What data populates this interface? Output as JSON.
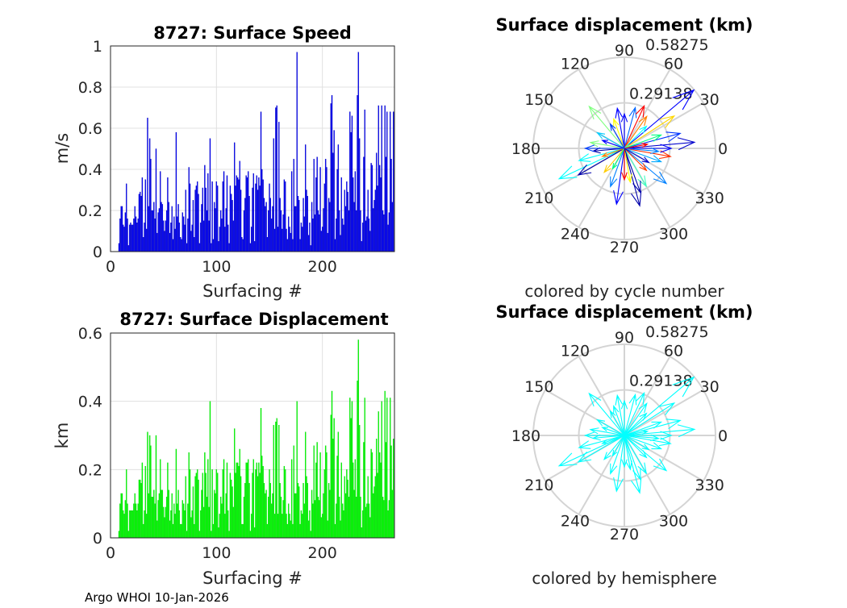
{
  "footer": "Argo WHOI 10-Jan-2026",
  "chart_data": [
    {
      "type": "bar",
      "title": "8727: Surface Speed",
      "xlabel": "Surfacing #",
      "ylabel": "m/s",
      "xlim": [
        0,
        268
      ],
      "ylim": [
        0,
        1
      ],
      "xticks": [
        "0",
        "100",
        "200"
      ],
      "yticks": [
        "0",
        "0.2",
        "0.4",
        "0.6",
        "0.8",
        "1"
      ],
      "grid": true,
      "color": "#0000ff",
      "x_start": 8,
      "values": [
        0.04,
        0.16,
        0.22,
        0.22,
        0.13,
        0.12,
        0.19,
        0.33,
        0.16,
        0.03,
        0.13,
        0.14,
        0.13,
        0.13,
        0.16,
        0.22,
        0.17,
        0.14,
        0.16,
        0.28,
        0.29,
        0.27,
        0.36,
        0.07,
        0.14,
        0.35,
        0.11,
        0.65,
        0.22,
        0.55,
        0.45,
        0.2,
        0.2,
        0.24,
        0.16,
        0.5,
        0.09,
        0.19,
        0.21,
        0.39,
        0.24,
        0.23,
        0.15,
        0.1,
        0.15,
        0.2,
        0.36,
        0.24,
        0.09,
        0.14,
        0.22,
        0.06,
        0.17,
        0.11,
        0.58,
        0.17,
        0.23,
        0.14,
        0.07,
        0.06,
        0.19,
        0.17,
        0.13,
        0.3,
        0.04,
        0.16,
        0.41,
        0.33,
        0.1,
        0.13,
        0.25,
        0.07,
        0.3,
        0.32,
        0.34,
        0.28,
        0.04,
        0.14,
        0.23,
        0.31,
        0.15,
        0.42,
        0.31,
        0.2,
        0.38,
        0.15,
        0.55,
        0.04,
        0.34,
        0.06,
        0.24,
        0.21,
        0.34,
        0.32,
        0.05,
        0.12,
        0.2,
        0.16,
        0.34,
        0.39,
        0.12,
        0.21,
        0.37,
        0.13,
        0.04,
        0.32,
        0.28,
        0.25,
        0.15,
        0.53,
        0.32,
        0.37,
        0.36,
        0.35,
        0.44,
        0.3,
        0.07,
        0.06,
        0.2,
        0.26,
        0.37,
        0.36,
        0.39,
        0.27,
        0.04,
        0.12,
        0.31,
        0.38,
        0.05,
        0.33,
        0.37,
        0.3,
        0.36,
        0.32,
        0.68,
        0.4,
        0.35,
        0.26,
        0.22,
        0.24,
        0.07,
        0.2,
        0.33,
        0.26,
        0.16,
        0.22,
        0.55,
        0.11,
        0.7,
        0.71,
        0.12,
        0.63,
        0.26,
        0.2,
        0.11,
        0.18,
        0.35,
        0.34,
        0.11,
        0.06,
        0.17,
        0.12,
        0.09,
        0.39,
        0.06,
        0.45,
        0.22,
        0.22,
        0.97,
        0.27,
        0.25,
        0.06,
        0.14,
        0.12,
        0.26,
        0.17,
        0.52,
        0.3,
        0.27,
        0.08,
        0.14,
        0.03,
        0.24,
        0.16,
        0.45,
        0.18,
        0.36,
        0.46,
        0.2,
        0.18,
        0.41,
        0.1,
        0.12,
        0.21,
        0.33,
        0.45,
        0.41,
        0.09,
        0.26,
        0.24,
        0.72,
        0.76,
        0.48,
        0.59,
        0.06,
        0.16,
        0.4,
        0.52,
        0.2,
        0.08,
        0.36,
        0.16,
        0.13,
        0.3,
        0.22,
        0.34,
        0.29,
        0.2,
        0.68,
        0.58,
        0.66,
        0.36,
        0.24,
        0.39,
        0.2,
        0.76,
        0.97,
        0.55,
        0.2,
        0.05,
        0.14,
        0.46,
        0.69,
        0.15,
        0.17,
        0.3,
        0.16,
        0.1,
        0.43,
        0.42,
        0.21,
        0.25,
        0.3,
        0.48,
        0.32,
        0.71,
        0.42,
        0.36,
        0.71,
        0.2,
        0.18,
        0.71,
        0.46,
        0.68,
        0.13,
        0.19,
        0.68,
        0.45,
        0.24,
        0.68
      ]
    },
    {
      "type": "bar",
      "title": "8727: Surface Displacement",
      "xlabel": "Surfacing #",
      "ylabel": "km",
      "xlim": [
        0,
        268
      ],
      "ylim": [
        0,
        0.6
      ],
      "xticks": [
        "0",
        "100",
        "200"
      ],
      "yticks": [
        "0",
        "0.2",
        "0.4",
        "0.6"
      ],
      "grid": true,
      "color": "#00ff00",
      "x_start": 8,
      "values": [
        0.02,
        0.1,
        0.13,
        0.13,
        0.08,
        0.07,
        0.11,
        0.2,
        0.1,
        0.02,
        0.08,
        0.08,
        0.08,
        0.08,
        0.1,
        0.13,
        0.1,
        0.08,
        0.1,
        0.17,
        0.17,
        0.16,
        0.22,
        0.04,
        0.08,
        0.21,
        0.07,
        0.31,
        0.13,
        0.3,
        0.27,
        0.12,
        0.12,
        0.14,
        0.1,
        0.3,
        0.05,
        0.11,
        0.13,
        0.23,
        0.14,
        0.14,
        0.09,
        0.06,
        0.09,
        0.12,
        0.22,
        0.14,
        0.05,
        0.08,
        0.13,
        0.04,
        0.1,
        0.07,
        0.26,
        0.1,
        0.14,
        0.08,
        0.04,
        0.04,
        0.11,
        0.1,
        0.08,
        0.18,
        0.02,
        0.1,
        0.25,
        0.2,
        0.06,
        0.08,
        0.15,
        0.04,
        0.18,
        0.19,
        0.2,
        0.17,
        0.02,
        0.08,
        0.14,
        0.19,
        0.09,
        0.25,
        0.19,
        0.12,
        0.23,
        0.09,
        0.4,
        0.02,
        0.2,
        0.04,
        0.14,
        0.13,
        0.2,
        0.19,
        0.03,
        0.07,
        0.12,
        0.1,
        0.2,
        0.23,
        0.07,
        0.13,
        0.22,
        0.08,
        0.02,
        0.19,
        0.17,
        0.15,
        0.09,
        0.32,
        0.19,
        0.22,
        0.22,
        0.21,
        0.26,
        0.18,
        0.04,
        0.04,
        0.12,
        0.16,
        0.22,
        0.22,
        0.23,
        0.16,
        0.02,
        0.07,
        0.19,
        0.23,
        0.03,
        0.2,
        0.22,
        0.18,
        0.22,
        0.19,
        0.38,
        0.24,
        0.21,
        0.16,
        0.13,
        0.14,
        0.04,
        0.12,
        0.2,
        0.16,
        0.1,
        0.13,
        0.33,
        0.07,
        0.34,
        0.35,
        0.07,
        0.33,
        0.16,
        0.12,
        0.07,
        0.11,
        0.21,
        0.2,
        0.07,
        0.04,
        0.1,
        0.07,
        0.05,
        0.23,
        0.04,
        0.27,
        0.13,
        0.13,
        0.4,
        0.16,
        0.15,
        0.04,
        0.08,
        0.07,
        0.16,
        0.1,
        0.31,
        0.18,
        0.16,
        0.05,
        0.08,
        0.02,
        0.14,
        0.1,
        0.27,
        0.11,
        0.22,
        0.28,
        0.12,
        0.11,
        0.25,
        0.06,
        0.07,
        0.13,
        0.2,
        0.27,
        0.25,
        0.05,
        0.16,
        0.14,
        0.36,
        0.43,
        0.29,
        0.35,
        0.04,
        0.1,
        0.24,
        0.31,
        0.12,
        0.05,
        0.22,
        0.1,
        0.08,
        0.18,
        0.13,
        0.2,
        0.17,
        0.12,
        0.41,
        0.35,
        0.4,
        0.22,
        0.14,
        0.23,
        0.12,
        0.46,
        0.58,
        0.33,
        0.12,
        0.03,
        0.08,
        0.28,
        0.41,
        0.09,
        0.1,
        0.18,
        0.1,
        0.06,
        0.26,
        0.25,
        0.13,
        0.15,
        0.18,
        0.29,
        0.19,
        0.37,
        0.25,
        0.22,
        0.4,
        0.12,
        0.11,
        0.43,
        0.28,
        0.41,
        0.08,
        0.11,
        0.41,
        0.27,
        0.14,
        0.29
      ]
    },
    {
      "type": "compass",
      "title": "Surface displacement (km)",
      "caption": "colored by cycle number",
      "rmax": 0.58275,
      "rticks": [
        "0.29138",
        "0.58275"
      ],
      "angle_ticks": [
        "0",
        "30",
        "60",
        "90",
        "120",
        "150",
        "180",
        "210",
        "240",
        "270",
        "300",
        "330"
      ],
      "arrows": [
        [
          40,
          0.58,
          "#0000ff"
        ],
        [
          33,
          0.38,
          "#ffd700"
        ],
        [
          5,
          0.45,
          "#0000cc"
        ],
        [
          15,
          0.37,
          "#0033ff"
        ],
        [
          205,
          0.46,
          "#00ffff"
        ],
        [
          210,
          0.34,
          "#0000aa"
        ],
        [
          262,
          0.36,
          "#0000ff"
        ],
        [
          285,
          0.38,
          "#0000aa"
        ],
        [
          320,
          0.35,
          "#0080ff"
        ],
        [
          130,
          0.35,
          "#80ff80"
        ],
        [
          100,
          0.26,
          "#0000ff"
        ],
        [
          75,
          0.27,
          "#0066ff"
        ],
        [
          65,
          0.3,
          "#ff0000"
        ],
        [
          55,
          0.25,
          "#ff8000"
        ],
        [
          195,
          0.3,
          "#00ffff"
        ],
        [
          170,
          0.22,
          "#80ff80"
        ],
        [
          185,
          0.2,
          "#0000aa"
        ],
        [
          350,
          0.3,
          "#ff3000"
        ],
        [
          340,
          0.25,
          "#00aaff"
        ],
        [
          300,
          0.28,
          "#40ffc0"
        ],
        [
          250,
          0.26,
          "#0080ff"
        ],
        [
          280,
          0.22,
          "#ffff00"
        ],
        [
          270,
          0.2,
          "#ff0000"
        ],
        [
          110,
          0.2,
          "#ffff00"
        ],
        [
          150,
          0.2,
          "#00ccff"
        ],
        [
          20,
          0.25,
          "#00ff80"
        ],
        [
          90,
          0.22,
          "#0000ff"
        ],
        [
          0,
          0.3,
          "#0000ff"
        ],
        [
          230,
          0.2,
          "#ffcc00"
        ],
        [
          315,
          0.2,
          "#ff4000"
        ],
        [
          355,
          0.22,
          "#0080ff"
        ],
        [
          160,
          0.15,
          "#0000ff"
        ],
        [
          45,
          0.2,
          "#00ffff"
        ],
        [
          120,
          0.18,
          "#0040ff"
        ],
        [
          200,
          0.15,
          "#ff8000"
        ],
        [
          240,
          0.15,
          "#00ff80"
        ],
        [
          330,
          0.18,
          "#0000cc"
        ],
        [
          10,
          0.15,
          "#ff0000"
        ],
        [
          290,
          0.3,
          "#0000aa"
        ],
        [
          180,
          0.25,
          "#0040ff"
        ]
      ]
    },
    {
      "type": "compass",
      "title": "Surface displacement (km)",
      "caption": "colored by hemisphere",
      "rmax": 0.58275,
      "rticks": [
        "0.29138",
        "0.58275"
      ],
      "angle_ticks": [
        "0",
        "30",
        "60",
        "90",
        "120",
        "150",
        "180",
        "210",
        "240",
        "270",
        "300",
        "330"
      ],
      "arrows": [
        [
          40,
          0.58,
          "#00ffff"
        ],
        [
          33,
          0.38,
          "#00ffff"
        ],
        [
          5,
          0.45,
          "#00ffff"
        ],
        [
          15,
          0.37,
          "#00ffff"
        ],
        [
          205,
          0.46,
          "#00ffff"
        ],
        [
          210,
          0.34,
          "#00ffff"
        ],
        [
          262,
          0.36,
          "#00ffff"
        ],
        [
          285,
          0.38,
          "#00ffff"
        ],
        [
          320,
          0.35,
          "#00ffff"
        ],
        [
          130,
          0.35,
          "#00ffff"
        ],
        [
          100,
          0.26,
          "#00ffff"
        ],
        [
          75,
          0.27,
          "#00ffff"
        ],
        [
          65,
          0.3,
          "#00ffff"
        ],
        [
          55,
          0.25,
          "#00ffff"
        ],
        [
          195,
          0.3,
          "#00ffff"
        ],
        [
          170,
          0.22,
          "#00ffff"
        ],
        [
          185,
          0.2,
          "#00ffff"
        ],
        [
          350,
          0.3,
          "#00ffff"
        ],
        [
          340,
          0.25,
          "#00ffff"
        ],
        [
          300,
          0.28,
          "#00ffff"
        ],
        [
          250,
          0.26,
          "#00ffff"
        ],
        [
          280,
          0.22,
          "#00ffff"
        ],
        [
          270,
          0.2,
          "#00ffff"
        ],
        [
          110,
          0.2,
          "#00ffff"
        ],
        [
          150,
          0.2,
          "#00ffff"
        ],
        [
          20,
          0.25,
          "#00ffff"
        ],
        [
          90,
          0.22,
          "#00ffff"
        ],
        [
          0,
          0.3,
          "#00ffff"
        ],
        [
          230,
          0.2,
          "#00ffff"
        ],
        [
          315,
          0.2,
          "#00ffff"
        ],
        [
          355,
          0.22,
          "#00ffff"
        ],
        [
          160,
          0.15,
          "#00ffff"
        ],
        [
          45,
          0.2,
          "#00ffff"
        ],
        [
          120,
          0.18,
          "#00ffff"
        ],
        [
          200,
          0.15,
          "#00ffff"
        ],
        [
          240,
          0.15,
          "#00ffff"
        ],
        [
          330,
          0.18,
          "#00ffff"
        ],
        [
          10,
          0.15,
          "#00ffff"
        ],
        [
          290,
          0.3,
          "#00ffff"
        ],
        [
          180,
          0.25,
          "#00ffff"
        ]
      ]
    }
  ]
}
